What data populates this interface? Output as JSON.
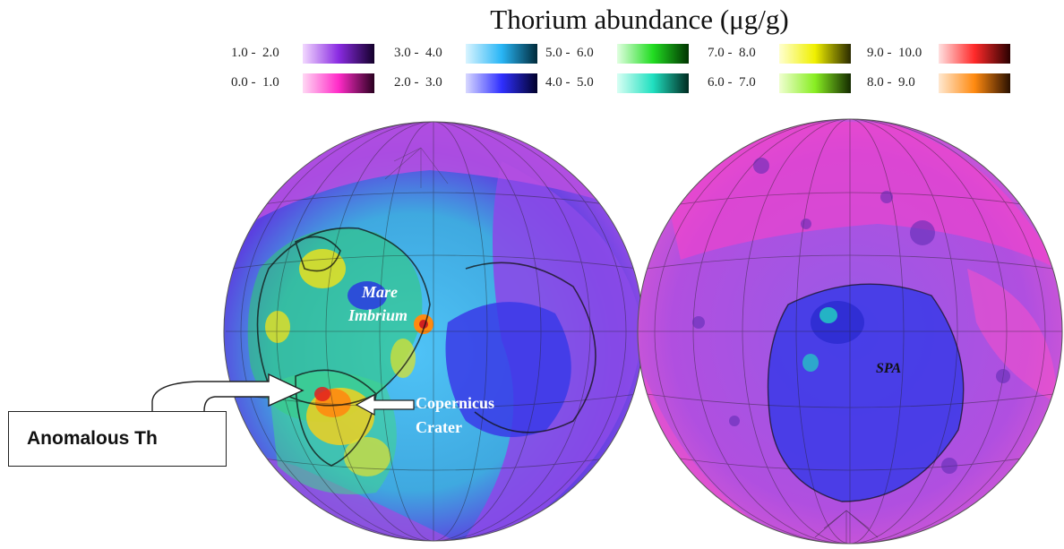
{
  "title": "Thorium abundance (μg/g)",
  "legend": [
    {
      "label": "1.0 -  2.0",
      "from": "#f2d8ff",
      "mid": "#8a2be2",
      "to": "#14002a"
    },
    {
      "label": "3.0 -  4.0",
      "from": "#d8f4ff",
      "mid": "#29b6f6",
      "to": "#002a3a"
    },
    {
      "label": "5.0 -  6.0",
      "from": "#e0ffe0",
      "mid": "#22dd22",
      "to": "#003300"
    },
    {
      "label": "7.0 -  8.0",
      "from": "#ffffd0",
      "mid": "#f0f000",
      "to": "#2a2a00"
    },
    {
      "label": "9.0 -  10.0",
      "from": "#ffe0e0",
      "mid": "#ff2a2a",
      "to": "#2a0000"
    },
    {
      "label": "0.0 -  1.0",
      "from": "#ffd8f4",
      "mid": "#ff2bc8",
      "to": "#2a0020"
    },
    {
      "label": "2.0 -  3.0",
      "from": "#d8d8ff",
      "mid": "#3030ff",
      "to": "#00002a"
    },
    {
      "label": "4.0 -  5.0",
      "from": "#d8fff4",
      "mid": "#20e0c0",
      "to": "#002a20"
    },
    {
      "label": "6.0 -  7.0",
      "from": "#f0ffd0",
      "mid": "#88ee22",
      "to": "#142a00"
    },
    {
      "label": "8.0 -  9.0",
      "from": "#ffe8d0",
      "mid": "#ff8a10",
      "to": "#2a1000"
    }
  ],
  "labels": {
    "mare": "Mare",
    "imbrium": "Imbrium",
    "copernicus": "Copernicus",
    "crater": "Crater",
    "spa": "SPA"
  },
  "callout": {
    "text": "Anomalous Th"
  }
}
